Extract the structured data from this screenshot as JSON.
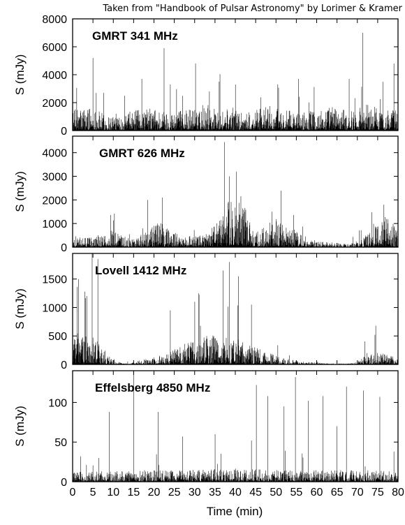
{
  "credit": "Taken from \"Handbook of Pulsar Astronomy\" by Lorimer & Kramer",
  "chart_data": {
    "type": "line",
    "xlabel": "Time (min)",
    "xlim": [
      0,
      80
    ],
    "xticks": [
      0,
      5,
      10,
      15,
      20,
      25,
      30,
      35,
      40,
      45,
      50,
      55,
      60,
      65,
      70,
      75,
      80
    ],
    "panels": [
      {
        "title": "GMRT 341 MHz",
        "ylabel": "S (mJy)",
        "ylim": [
          0,
          8000
        ],
        "yticks": [
          0,
          2000,
          4000,
          6000,
          8000
        ],
        "envelope": {
          "x": [
            0,
            4,
            8,
            12,
            16,
            20,
            24,
            28,
            32,
            36,
            40,
            44,
            48,
            52,
            56,
            60,
            64,
            68,
            72,
            76,
            80
          ],
          "y": [
            900,
            1100,
            700,
            750,
            900,
            1000,
            800,
            900,
            1300,
            950,
            1000,
            800,
            1100,
            900,
            800,
            900,
            1100,
            800,
            1300,
            900,
            1000
          ]
        },
        "spikes": [
          [
            5.0,
            5200
          ],
          [
            17.0,
            3700
          ],
          [
            22.5,
            5900
          ],
          [
            24.0,
            3300
          ],
          [
            36.0,
            3500
          ],
          [
            40.0,
            3300
          ],
          [
            55.5,
            3700
          ],
          [
            68.0,
            3700
          ],
          [
            71.3,
            7000
          ],
          [
            79.0,
            4800
          ]
        ]
      },
      {
        "title": "GMRT 626 MHz",
        "ylabel": "S (mJy)",
        "ylim": [
          0,
          4700
        ],
        "yticks": [
          0,
          1000,
          2000,
          3000,
          4000
        ],
        "envelope": {
          "x": [
            0,
            3,
            6,
            9,
            12,
            15,
            18,
            21,
            24,
            27,
            30,
            33,
            36,
            38,
            40,
            42,
            44,
            47,
            50,
            53,
            56,
            59,
            62,
            65,
            68,
            71,
            74,
            77,
            80
          ],
          "y": [
            300,
            250,
            300,
            450,
            300,
            200,
            400,
            700,
            500,
            300,
            300,
            350,
            700,
            1200,
            1700,
            1200,
            500,
            500,
            800,
            500,
            400,
            200,
            150,
            100,
            80,
            200,
            600,
            900,
            400
          ]
        },
        "spikes": [
          [
            18.5,
            2000
          ],
          [
            22.0,
            2100
          ],
          [
            37.3,
            4450
          ],
          [
            38.5,
            3000
          ],
          [
            40.3,
            3200
          ],
          [
            49.0,
            1500
          ],
          [
            76.5,
            1800
          ]
        ]
      },
      {
        "title": "Lovell 1412 MHz",
        "ylabel": "S (mJy)",
        "ylim": [
          0,
          1950
        ],
        "yticks": [
          0,
          500,
          1000,
          1500
        ],
        "envelope": {
          "x": [
            0,
            2,
            4,
            6,
            8,
            10,
            12,
            14,
            16,
            20,
            24,
            28,
            32,
            36,
            40,
            44,
            48,
            52,
            56,
            60,
            64,
            68,
            70,
            72,
            76,
            80
          ],
          "y": [
            380,
            330,
            280,
            300,
            160,
            60,
            20,
            10,
            40,
            80,
            140,
            230,
            300,
            320,
            280,
            200,
            130,
            70,
            30,
            20,
            10,
            10,
            30,
            120,
            130,
            60
          ]
        },
        "spikes": [
          [
            1.5,
            1500
          ],
          [
            3.5,
            1200
          ],
          [
            4.8,
            1950
          ],
          [
            6.2,
            1850
          ],
          [
            24.0,
            950
          ],
          [
            30.0,
            1100
          ],
          [
            31.0,
            1250
          ],
          [
            37.0,
            1650
          ],
          [
            38.5,
            1800
          ],
          [
            40.8,
            1550
          ],
          [
            44.0,
            1050
          ],
          [
            74.5,
            680
          ]
        ]
      },
      {
        "title": "Effelsberg 4850 MHz",
        "ylabel": "S (mJy)",
        "ylim": [
          0,
          140
        ],
        "yticks": [
          0,
          50,
          100
        ],
        "envelope": {
          "x": [
            0,
            10,
            20,
            30,
            40,
            50,
            60,
            70,
            80
          ],
          "y": [
            8,
            8,
            9,
            9,
            10,
            9,
            9,
            9,
            8
          ]
        },
        "spikes": [
          [
            2.0,
            32
          ],
          [
            9.0,
            88
          ],
          [
            15.0,
            140
          ],
          [
            21.0,
            88
          ],
          [
            27.0,
            57
          ],
          [
            35.0,
            60
          ],
          [
            44.0,
            52
          ],
          [
            45.2,
            122
          ],
          [
            48.0,
            108
          ],
          [
            52.0,
            95
          ],
          [
            54.8,
            132
          ],
          [
            58.0,
            102
          ],
          [
            61.5,
            108
          ],
          [
            65.0,
            70
          ],
          [
            67.3,
            120
          ],
          [
            71.5,
            115
          ],
          [
            75.5,
            107
          ],
          [
            79.0,
            38
          ]
        ]
      }
    ]
  }
}
